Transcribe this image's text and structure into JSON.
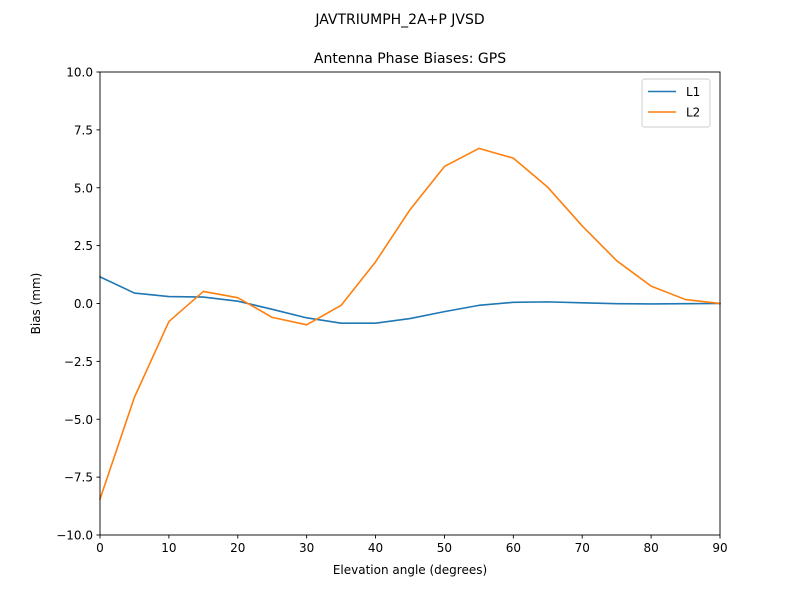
{
  "chart_data": {
    "type": "line",
    "suptitle": "JAVTRIUMPH_2A+P JVSD",
    "title": "Antenna Phase Biases: GPS",
    "xlabel": "Elevation angle (degrees)",
    "ylabel": "Bias (mm)",
    "xlim": [
      0,
      90
    ],
    "ylim": [
      -10,
      10
    ],
    "xticks": [
      0,
      10,
      20,
      30,
      40,
      50,
      60,
      70,
      80,
      90
    ],
    "yticks": [
      -10,
      -7.5,
      -5,
      -2.5,
      0,
      2.5,
      5,
      7.5,
      10
    ],
    "ytick_labels": [
      "−10.0",
      "−7.5",
      "−5.0",
      "−2.5",
      "0.0",
      "2.5",
      "5.0",
      "7.5",
      "10.0"
    ],
    "grid": false,
    "legend": "top-right",
    "x": [
      0,
      5,
      10,
      15,
      20,
      25,
      30,
      35,
      40,
      45,
      50,
      55,
      60,
      65,
      70,
      75,
      80,
      85,
      90
    ],
    "series": [
      {
        "name": "L1",
        "color": "#1f77b4",
        "values": [
          1.15,
          0.45,
          0.3,
          0.28,
          0.1,
          -0.25,
          -0.62,
          -0.85,
          -0.85,
          -0.65,
          -0.35,
          -0.08,
          0.05,
          0.07,
          0.03,
          -0.01,
          -0.02,
          -0.01,
          0.0
        ]
      },
      {
        "name": "L2",
        "color": "#ff7f0e",
        "values": [
          -8.45,
          -4.05,
          -0.78,
          0.52,
          0.25,
          -0.6,
          -0.92,
          -0.08,
          1.8,
          4.05,
          5.92,
          6.7,
          6.28,
          5.02,
          3.35,
          1.85,
          0.75,
          0.17,
          0.0
        ]
      }
    ]
  }
}
